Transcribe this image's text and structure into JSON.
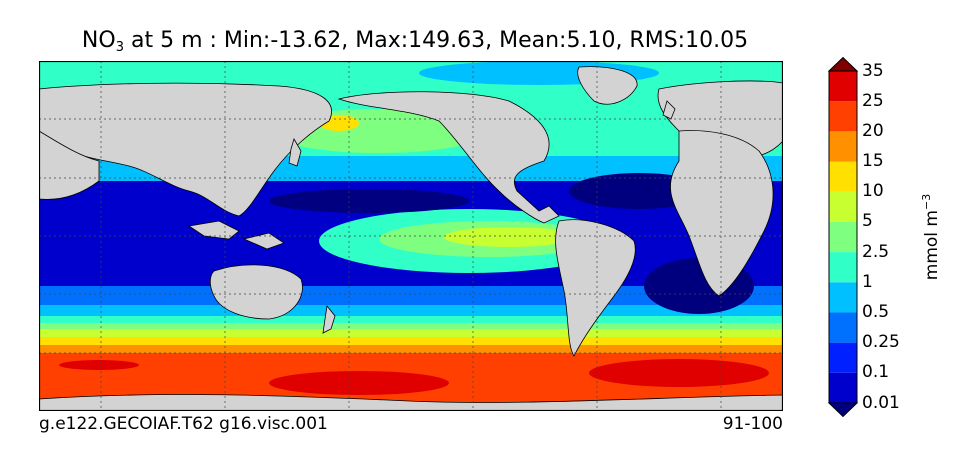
{
  "title": {
    "species": "NO",
    "species_sub": "3",
    "rest": " at 5 m : Min:-13.62, Max:149.63, Mean:5.10, RMS:10.05"
  },
  "footer": {
    "case": "g.e122.GECOIAF.T62 g16.visc.001",
    "years": "91-100"
  },
  "colorbar": {
    "units_main": "mmol m",
    "units_exp": "−3",
    "levels": [
      "0.01",
      "0.1",
      "0.25",
      "0.5",
      "1",
      "2.5",
      "5",
      "10",
      "15",
      "20",
      "25",
      "35"
    ],
    "colors": [
      "#00007f",
      "#0000cc",
      "#0020ff",
      "#0070ff",
      "#00c0ff",
      "#30ffc8",
      "#7fff7f",
      "#c8ff30",
      "#ffe000",
      "#ff9000",
      "#ff4000",
      "#e00000",
      "#800000"
    ]
  },
  "map": {
    "land_color": "#d3d3d3",
    "grid": true
  }
}
